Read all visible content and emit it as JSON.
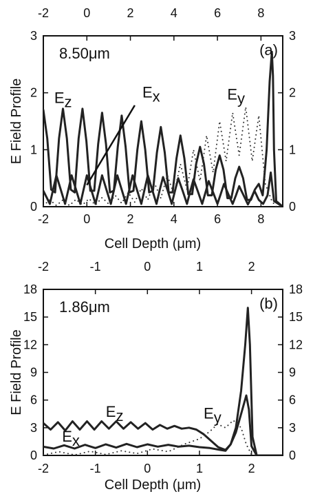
{
  "chart_data": [
    {
      "type": "line",
      "panel_label": "(a)",
      "annotation": "8.50μm",
      "xlabel": "Cell Depth (μm)",
      "ylabel": "E Field Profile",
      "xlim": [
        -2,
        9
      ],
      "ylim": [
        0,
        3
      ],
      "x_ticks": [
        -2,
        0,
        2,
        4,
        6,
        8
      ],
      "y_ticks": [
        0,
        1,
        2,
        3
      ],
      "series": [
        {
          "name": "Ez",
          "style": "solid",
          "color": "#222222",
          "x": [
            -2,
            -1.82,
            -1.64,
            -1.46,
            -1.28,
            -1.1,
            -0.92,
            -0.74,
            -0.56,
            -0.38,
            -0.2,
            -0.02,
            0.16,
            0.34,
            0.52,
            0.7,
            0.88,
            1.06,
            1.24,
            1.42,
            1.6,
            1.78,
            1.96,
            2.14,
            2.32,
            2.5,
            2.68,
            2.86,
            3.04,
            3.22,
            3.4,
            3.58,
            3.76,
            3.94,
            4.12,
            4.3,
            4.48,
            4.66,
            4.84,
            5.02,
            5.2,
            5.38,
            5.56,
            5.74,
            5.92,
            6.1,
            6.28,
            6.46,
            6.64,
            6.82,
            7.0,
            7.18,
            7.36,
            7.54,
            7.72,
            7.9,
            8.08,
            8.26,
            8.4,
            8.5,
            8.55,
            8.6,
            8.7,
            9.0
          ],
          "y": [
            1.7,
            1.2,
            0.3,
            0.25,
            1.2,
            1.72,
            1.2,
            0.3,
            0.25,
            1.2,
            1.72,
            1.15,
            0.28,
            0.28,
            1.1,
            1.65,
            1.1,
            0.25,
            0.28,
            1.05,
            1.6,
            1.05,
            0.25,
            0.28,
            1.0,
            1.5,
            1.0,
            0.25,
            0.28,
            0.95,
            1.4,
            0.95,
            0.25,
            0.25,
            0.85,
            1.25,
            0.85,
            0.22,
            0.22,
            0.75,
            1.05,
            0.75,
            0.2,
            0.2,
            0.65,
            0.9,
            0.65,
            0.15,
            0.15,
            0.5,
            0.7,
            0.5,
            0.12,
            0.12,
            0.3,
            0.4,
            0.2,
            1.0,
            2.2,
            2.72,
            2.3,
            1.0,
            0.1,
            0.0
          ]
        },
        {
          "name": "Ex",
          "style": "solid",
          "color": "#222222",
          "x": [
            -2,
            -1.7,
            -1.55,
            -1.4,
            -1.2,
            -1.0,
            -0.85,
            -0.7,
            -0.5,
            -0.3,
            -0.15,
            0.0,
            0.2,
            0.4,
            0.55,
            0.7,
            0.9,
            1.1,
            1.25,
            1.4,
            1.6,
            1.8,
            1.95,
            2.1,
            2.3,
            2.5,
            2.65,
            2.8,
            3.0,
            3.2,
            3.35,
            3.5,
            3.7,
            3.9,
            4.05,
            4.2,
            4.4,
            4.6,
            4.75,
            4.9,
            5.1,
            5.3,
            5.45,
            5.6,
            5.8,
            6.0,
            6.15,
            6.3,
            6.5,
            6.7,
            6.85,
            7.0,
            7.2,
            7.4,
            7.55,
            7.7,
            7.9,
            8.1,
            8.3,
            8.45,
            8.6,
            9.0
          ],
          "y": [
            0.28,
            0.05,
            0.3,
            0.55,
            0.3,
            0.05,
            0.3,
            0.55,
            0.3,
            0.05,
            0.3,
            0.55,
            0.3,
            0.05,
            0.3,
            0.55,
            0.3,
            0.05,
            0.3,
            0.55,
            0.3,
            0.05,
            0.3,
            0.55,
            0.3,
            0.05,
            0.3,
            0.55,
            0.3,
            0.05,
            0.3,
            0.52,
            0.3,
            0.05,
            0.28,
            0.5,
            0.28,
            0.05,
            0.27,
            0.48,
            0.27,
            0.05,
            0.25,
            0.45,
            0.25,
            0.05,
            0.22,
            0.4,
            0.22,
            0.05,
            0.2,
            0.36,
            0.2,
            0.04,
            0.15,
            0.28,
            0.12,
            0.05,
            0.2,
            0.6,
            0.1,
            0.0
          ]
        },
        {
          "name": "Ey",
          "style": "dotted",
          "color": "#333333",
          "x": [
            -2,
            -1.7,
            -1.4,
            -1.1,
            -0.8,
            -0.5,
            -0.2,
            0.1,
            0.4,
            0.7,
            1.0,
            1.3,
            1.6,
            1.9,
            2.2,
            2.5,
            2.8,
            3.1,
            3.4,
            3.7,
            4.0,
            4.3,
            4.6,
            4.9,
            5.2,
            5.5,
            5.8,
            6.1,
            6.4,
            6.7,
            7.0,
            7.3,
            7.6,
            7.9,
            8.2,
            8.5,
            8.7,
            9.0
          ],
          "y": [
            0.02,
            0.12,
            0.02,
            0.12,
            0.02,
            0.13,
            0.03,
            0.14,
            0.03,
            0.16,
            0.05,
            0.2,
            0.06,
            0.25,
            0.08,
            0.32,
            0.12,
            0.42,
            0.15,
            0.55,
            0.22,
            0.75,
            0.3,
            1.0,
            0.45,
            1.25,
            0.6,
            1.5,
            0.8,
            1.65,
            0.9,
            1.75,
            0.8,
            1.6,
            0.4,
            0.1,
            0.0,
            0.0
          ]
        }
      ],
      "series_labels": [
        {
          "main": "E",
          "sub": "z",
          "x": -1.5,
          "y": 1.82
        },
        {
          "main": "E",
          "sub": "x",
          "x": 2.55,
          "y": 1.92
        },
        {
          "main": "E",
          "sub": "y",
          "x": 6.45,
          "y": 1.88
        }
      ],
      "pointer_line": {
        "from": [
          2.2,
          1.78
        ],
        "to": [
          0.0,
          0.38
        ]
      }
    },
    {
      "type": "line",
      "panel_label": "(b)",
      "annotation": "1.86μm",
      "xlabel": "Cell Depth (μm)",
      "ylabel": "E Field Profile",
      "xlim": [
        -2,
        2.6
      ],
      "ylim": [
        0,
        18
      ],
      "x_ticks": [
        -2,
        -1,
        0,
        1,
        2
      ],
      "y_ticks": [
        0,
        3,
        6,
        9,
        12,
        15,
        18
      ],
      "series": [
        {
          "name": "Ez",
          "style": "solid",
          "color": "#222222",
          "x": [
            -2,
            -1.86,
            -1.72,
            -1.58,
            -1.44,
            -1.3,
            -1.16,
            -1.02,
            -0.88,
            -0.74,
            -0.6,
            -0.46,
            -0.32,
            -0.18,
            -0.04,
            0.1,
            0.24,
            0.38,
            0.52,
            0.66,
            0.8,
            0.94,
            1.08,
            1.22,
            1.36,
            1.5,
            1.6,
            1.7,
            1.8,
            1.9,
            1.95,
            2.0,
            2.1,
            2.6
          ],
          "y": [
            3.5,
            2.8,
            3.6,
            2.7,
            3.7,
            2.8,
            3.7,
            2.8,
            3.7,
            2.9,
            3.7,
            2.9,
            3.6,
            2.9,
            3.5,
            2.8,
            3.3,
            2.9,
            3.2,
            2.9,
            3.0,
            2.8,
            2.3,
            1.6,
            0.9,
            0.6,
            1.2,
            2.5,
            4.5,
            6.5,
            5.0,
            1.0,
            0.0,
            0.0
          ]
        },
        {
          "name": "Ex",
          "style": "solid",
          "color": "#222222",
          "x": [
            -2,
            -1.8,
            -1.6,
            -1.4,
            -1.2,
            -1.0,
            -0.8,
            -0.6,
            -0.4,
            -0.2,
            0.0,
            0.2,
            0.4,
            0.6,
            0.8,
            1.0,
            1.2,
            1.4,
            1.5,
            1.6,
            1.7,
            1.8,
            1.88,
            1.93,
            1.97,
            2.02,
            2.1,
            2.6
          ],
          "y": [
            0.95,
            0.75,
            1.1,
            0.75,
            1.15,
            0.8,
            1.2,
            0.85,
            1.25,
            0.9,
            1.2,
            0.95,
            1.15,
            0.95,
            1.05,
            0.9,
            0.8,
            0.6,
            0.5,
            1.2,
            3.0,
            7.0,
            12.0,
            16.0,
            12.0,
            2.0,
            0.0,
            0.0
          ]
        },
        {
          "name": "Ey",
          "style": "dotted",
          "color": "#333333",
          "x": [
            -2,
            -1.7,
            -1.4,
            -1.1,
            -0.8,
            -0.5,
            -0.2,
            0.1,
            0.4,
            0.7,
            1.0,
            1.2,
            1.35,
            1.5,
            1.65,
            1.8,
            1.9,
            2.0,
            2.1
          ],
          "y": [
            0.05,
            0.4,
            0.05,
            0.45,
            0.1,
            0.5,
            0.2,
            0.7,
            0.4,
            1.2,
            1.8,
            2.6,
            3.4,
            3.0,
            3.8,
            3.0,
            1.2,
            0.1,
            0.0
          ]
        }
      ],
      "series_labels": [
        {
          "main": "E",
          "sub": "z",
          "x": -0.8,
          "y": 4.2
        },
        {
          "main": "E",
          "sub": "x",
          "x": -1.64,
          "y": 1.5
        },
        {
          "main": "E",
          "sub": "y",
          "x": 1.08,
          "y": 4.0
        }
      ]
    }
  ]
}
